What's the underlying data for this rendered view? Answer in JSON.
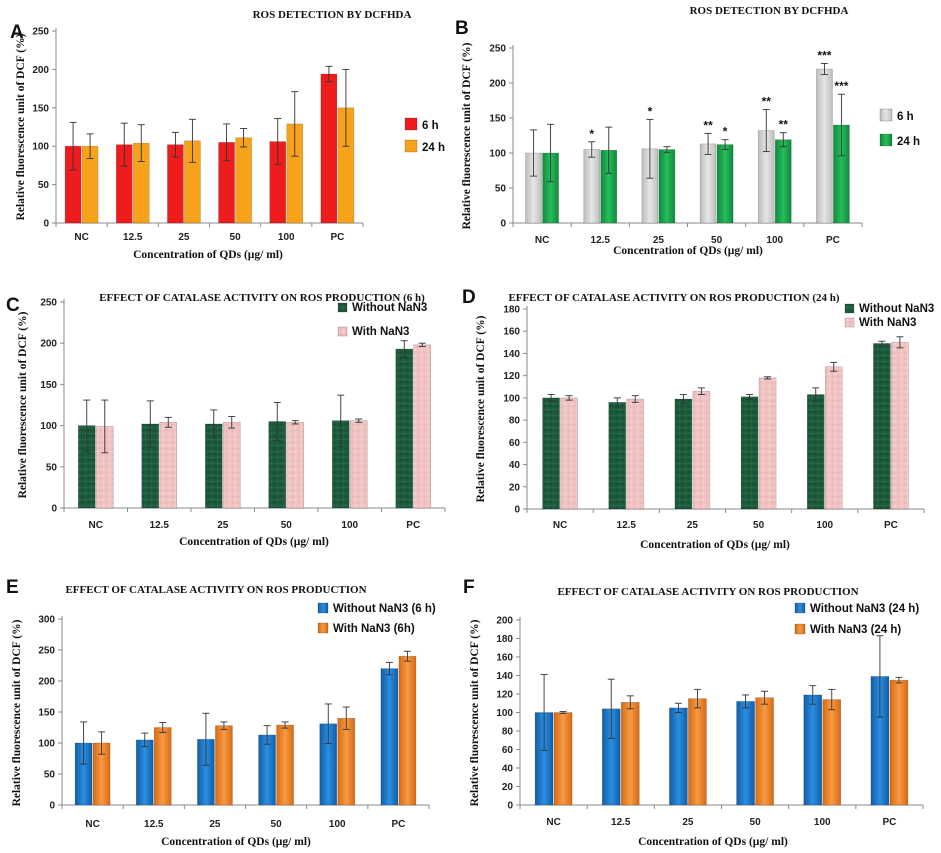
{
  "colors": {
    "red": "#ee1c1c",
    "orange_a": "#f7a21b",
    "grey": "#d2d2d2",
    "green_b": "#17a64a",
    "dark_green": "#1d5a3c",
    "pink": "#f1c2c2",
    "blue": "#1877c7",
    "orange_ef": "#ef7f22"
  },
  "chart_data": [
    {
      "panel": "A",
      "type": "bar",
      "title": "ROS DETECTION BY DCFHDA",
      "xlabel": "Concentration of QDs (µg/ ml)",
      "ylabel": "Relative fluorescence unit of DCF (%)",
      "categories": [
        "NC",
        "12.5",
        "25",
        "50",
        "100",
        "PC"
      ],
      "ylim": [
        0,
        250
      ],
      "yticks": [
        0,
        50,
        100,
        150,
        200,
        250
      ],
      "legend": "right",
      "series": [
        {
          "name": "6 h",
          "color": "#ee1c1c",
          "values": [
            100,
            102,
            102,
            105,
            106,
            194
          ],
          "errors": [
            31,
            28,
            16,
            24,
            30,
            10
          ]
        },
        {
          "name": "24 h",
          "color": "#f7a21b",
          "values": [
            100,
            104,
            107,
            111,
            129,
            150
          ],
          "errors": [
            16,
            24,
            28,
            12,
            42,
            50
          ]
        }
      ],
      "annotations": []
    },
    {
      "panel": "B",
      "type": "bar",
      "title": "ROS DETECTION BY DCFHDA",
      "xlabel": "Concentration of QDs (µg/ ml)",
      "ylabel": "Relative fluorescence unit of DCF (%)",
      "categories": [
        "NC",
        "12.5",
        "25",
        "50",
        "100",
        "PC"
      ],
      "ylim": [
        0,
        250
      ],
      "yticks": [
        0,
        50,
        100,
        150,
        200,
        250
      ],
      "legend": "right",
      "series": [
        {
          "name": "6 h",
          "color": "#d2d2d2",
          "values": [
            100,
            105,
            106,
            113,
            132,
            220
          ],
          "errors": [
            33,
            11,
            42,
            15,
            30,
            8
          ]
        },
        {
          "name": "24 h",
          "color": "#17a64a",
          "values": [
            100,
            104,
            105,
            112,
            119,
            140
          ],
          "errors": [
            41,
            33,
            4,
            7,
            10,
            44
          ]
        }
      ],
      "annotations": [
        {
          "category": 1,
          "series": 0,
          "text": "*"
        },
        {
          "category": 2,
          "series": 0,
          "text": "*"
        },
        {
          "category": 3,
          "series": 0,
          "text": "**"
        },
        {
          "category": 3,
          "series": 1,
          "text": "*"
        },
        {
          "category": 4,
          "series": 0,
          "text": "**"
        },
        {
          "category": 4,
          "series": 1,
          "text": "**"
        },
        {
          "category": 5,
          "series": 0,
          "text": "***"
        },
        {
          "category": 5,
          "series": 1,
          "text": "***"
        }
      ]
    },
    {
      "panel": "C",
      "type": "bar",
      "title": "EFFECT OF CATALASE ACTIVITY ON ROS PRODUCTION (6 h)",
      "xlabel": "Concentration of QDs (µg/ ml)",
      "ylabel": "Relative fluorescence unit of DCF (%)",
      "categories": [
        "NC",
        "12.5",
        "25",
        "50",
        "100",
        "PC"
      ],
      "ylim": [
        0,
        250
      ],
      "yticks": [
        0,
        50,
        100,
        150,
        200,
        250
      ],
      "legend": "top-right",
      "series": [
        {
          "name": "Without NaN3",
          "color": "#1d5a3c",
          "values": [
            100,
            102,
            102,
            105,
            106,
            193
          ],
          "errors": [
            31,
            28,
            17,
            23,
            31,
            10
          ]
        },
        {
          "name": "With NaN3",
          "color": "#f1c2c2",
          "values": [
            99,
            104,
            104,
            104,
            106,
            198
          ],
          "errors": [
            32,
            6,
            7,
            2,
            2,
            2
          ]
        }
      ],
      "annotations": []
    },
    {
      "panel": "D",
      "type": "bar",
      "title": "EFFECT OF CATALASE ACTIVITY ON ROS PRODUCTION (24 h)",
      "xlabel": "Concentration of QDs (µg/ ml)",
      "ylabel": "Relative fluorescence unit of DCF (%)",
      "categories": [
        "NC",
        "12.5",
        "25",
        "50",
        "100",
        "PC"
      ],
      "ylim": [
        0,
        180
      ],
      "yticks": [
        0,
        20,
        40,
        60,
        80,
        100,
        120,
        140,
        160,
        180
      ],
      "legend": "top-right",
      "series": [
        {
          "name": "Without NaN3",
          "color": "#1d5a3c",
          "values": [
            100,
            96,
            99,
            101,
            103,
            149
          ],
          "errors": [
            3,
            4,
            4,
            2,
            6,
            2
          ]
        },
        {
          "name": "With NaN3",
          "color": "#f1c2c2",
          "values": [
            100,
            99,
            106,
            118,
            128,
            150
          ],
          "errors": [
            2,
            3,
            3,
            1,
            4,
            5
          ]
        }
      ],
      "annotations": []
    },
    {
      "panel": "E",
      "type": "bar",
      "title": "EFFECT OF CATALASE ACTIVITY ON ROS PRODUCTION",
      "xlabel": "Concentration of QDs (µg/ ml)",
      "ylabel": "Relative fluorescence unit of DCF (%)",
      "categories": [
        "NC",
        "12.5",
        "25",
        "50",
        "100",
        "PC"
      ],
      "ylim": [
        0,
        300
      ],
      "yticks": [
        0,
        50,
        100,
        150,
        200,
        250,
        300
      ],
      "legend": "top-right",
      "series": [
        {
          "name": "Without NaN3 (6 h)",
          "color": "#1877c7",
          "values": [
            100,
            105,
            106,
            113,
            131,
            220
          ],
          "errors": [
            34,
            11,
            42,
            15,
            32,
            10
          ]
        },
        {
          "name": "With NaN3 (6h)",
          "color": "#ef7f22",
          "values": [
            100,
            125,
            128,
            129,
            140,
            240
          ],
          "errors": [
            18,
            8,
            6,
            5,
            18,
            8
          ]
        }
      ],
      "annotations": []
    },
    {
      "panel": "F",
      "type": "bar",
      "title": "EFFECT OF CATALASE ACTIVITY ON ROS PRODUCTION",
      "xlabel": "Concentration of QDs (µg/ ml)",
      "ylabel": "Relative fluorescence unit of DCF (%)",
      "categories": [
        "NC",
        "12.5",
        "25",
        "50",
        "100",
        "PC"
      ],
      "ylim": [
        0,
        200
      ],
      "yticks": [
        0,
        20,
        40,
        60,
        80,
        100,
        120,
        140,
        160,
        180,
        200
      ],
      "legend": "top-right",
      "series": [
        {
          "name": "Without NaN3 (24 h)",
          "color": "#1877c7",
          "values": [
            100,
            104,
            105,
            112,
            119,
            139
          ],
          "errors": [
            41,
            32,
            5,
            7,
            10,
            44
          ]
        },
        {
          "name": "With NaN3 (24 h)",
          "color": "#ef7f22",
          "values": [
            100,
            111,
            115,
            116,
            114,
            135
          ],
          "errors": [
            1,
            7,
            10,
            7,
            11,
            3
          ]
        }
      ],
      "annotations": []
    }
  ]
}
